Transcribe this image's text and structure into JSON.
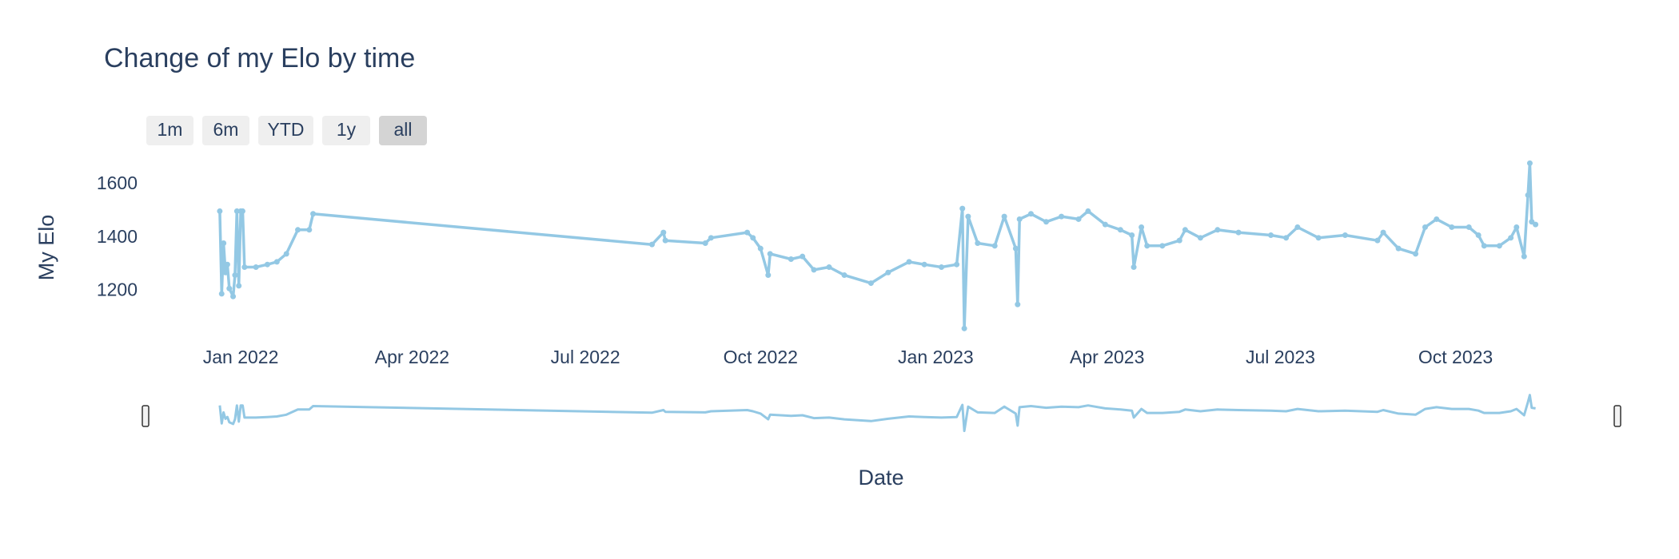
{
  "chart_data": {
    "type": "line",
    "title": "Change of my Elo by time",
    "buttons": [
      "1m",
      "6m",
      "YTD",
      "1y",
      "all"
    ],
    "x_label": "Date",
    "y_label": "My Elo",
    "color": "#93c8e4",
    "xlim": [
      "2021-11-12",
      "2023-12-25"
    ],
    "xticks": [
      {
        "value": "2022-01-01",
        "label": "Jan 2022"
      },
      {
        "value": "2022-04-01",
        "label": "Apr 2022"
      },
      {
        "value": "2022-07-01",
        "label": "Jul 2022"
      },
      {
        "value": "2022-10-01",
        "label": "Oct 2022"
      },
      {
        "value": "2023-01-01",
        "label": "Jan 2023"
      },
      {
        "value": "2023-04-01",
        "label": "Apr 2023"
      },
      {
        "value": "2023-07-01",
        "label": "Jul 2023"
      },
      {
        "value": "2023-10-01",
        "label": "Oct 2023"
      }
    ],
    "ylim": [
      1040,
      1690
    ],
    "yticks": [
      1200,
      1400,
      1600
    ],
    "series": [
      {
        "name": "My Elo",
        "color": "#93c8e4",
        "x": [
          "2021-12-21",
          "2021-12-22",
          "2021-12-23",
          "2021-12-24",
          "2021-12-25",
          "2021-12-26",
          "2021-12-28",
          "2021-12-29",
          "2021-12-30",
          "2021-12-31",
          "2022-01-01",
          "2022-01-02",
          "2022-01-03",
          "2022-01-09",
          "2022-01-15",
          "2022-01-20",
          "2022-01-25",
          "2022-01-31",
          "2022-02-06",
          "2022-02-08",
          "2022-08-05",
          "2022-08-11",
          "2022-08-12",
          "2022-09-02",
          "2022-09-05",
          "2022-09-24",
          "2022-09-27",
          "2022-10-01",
          "2022-10-05",
          "2022-10-06",
          "2022-10-17",
          "2022-10-23",
          "2022-10-29",
          "2022-11-06",
          "2022-11-14",
          "2022-11-28",
          "2022-12-07",
          "2022-12-18",
          "2022-12-26",
          "2023-01-04",
          "2023-01-12",
          "2023-01-15",
          "2023-01-16",
          "2023-01-18",
          "2023-01-23",
          "2023-02-01",
          "2023-02-06",
          "2023-02-12",
          "2023-02-13",
          "2023-02-14",
          "2023-02-20",
          "2023-02-28",
          "2023-03-08",
          "2023-03-17",
          "2023-03-22",
          "2023-03-31",
          "2023-04-08",
          "2023-04-14",
          "2023-04-15",
          "2023-04-19",
          "2023-04-22",
          "2023-04-30",
          "2023-05-09",
          "2023-05-12",
          "2023-05-20",
          "2023-05-29",
          "2023-06-09",
          "2023-06-26",
          "2023-07-04",
          "2023-07-10",
          "2023-07-21",
          "2023-08-04",
          "2023-08-21",
          "2023-08-24",
          "2023-09-01",
          "2023-09-10",
          "2023-09-15",
          "2023-09-21",
          "2023-09-29",
          "2023-10-08",
          "2023-10-13",
          "2023-10-16",
          "2023-10-24",
          "2023-10-30",
          "2023-11-02",
          "2023-11-06",
          "2023-11-08",
          "2023-11-09",
          "2023-11-10",
          "2023-11-12"
        ],
        "values": [
          1500,
          1190,
          1380,
          1270,
          1300,
          1210,
          1180,
          1260,
          1500,
          1220,
          1500,
          1500,
          1290,
          1290,
          1300,
          1310,
          1340,
          1430,
          1430,
          1490,
          1375,
          1420,
          1390,
          1380,
          1400,
          1420,
          1400,
          1360,
          1260,
          1340,
          1320,
          1330,
          1280,
          1290,
          1260,
          1230,
          1270,
          1310,
          1300,
          1290,
          1300,
          1510,
          1060,
          1480,
          1380,
          1370,
          1480,
          1360,
          1150,
          1470,
          1490,
          1460,
          1480,
          1470,
          1500,
          1450,
          1430,
          1410,
          1290,
          1440,
          1370,
          1370,
          1390,
          1430,
          1400,
          1430,
          1420,
          1410,
          1400,
          1440,
          1400,
          1410,
          1390,
          1420,
          1360,
          1340,
          1440,
          1470,
          1440,
          1440,
          1410,
          1370,
          1370,
          1400,
          1440,
          1330,
          1560,
          1680,
          1460,
          1450
        ]
      }
    ]
  }
}
